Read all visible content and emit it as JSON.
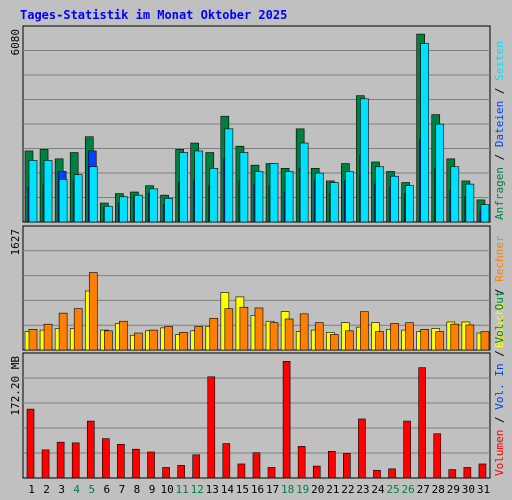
{
  "title": "Tages-Statistik im Monat Oktober 2025",
  "colors": {
    "background": "#c0c0c0",
    "title": "#0000ff",
    "anfragen": "#008040",
    "dateien": "#0040ff",
    "seiten": "#00e0ff",
    "besuche": "#ffff00",
    "rechner": "#ff8000",
    "volumen": "#ff0000",
    "vol_in": "#0040ff",
    "vol_out": "#008040",
    "weekend": "#008040"
  },
  "chart_data": [
    {
      "type": "bar",
      "name": "top",
      "ymax_label": "6080",
      "ylim": [
        0,
        6080
      ],
      "series": [
        {
          "name": "Anfragen",
          "values": [
            2250,
            2300,
            2000,
            2200,
            2700,
            600,
            900,
            950,
            1150,
            850,
            2300,
            2500,
            2200,
            3350,
            2400,
            1800,
            1850,
            1700,
            2950,
            1700,
            1300,
            1850,
            4000,
            1900,
            1600,
            1250,
            5950,
            3400,
            2000,
            1300,
            700
          ]
        },
        {
          "name": "Dateien",
          "values": [
            1100,
            1200,
            1600,
            1300,
            2250,
            450,
            600,
            800,
            900,
            550,
            1250,
            1300,
            1150,
            2000,
            1300,
            1200,
            1150,
            950,
            1700,
            1300,
            900,
            1300,
            2100,
            1200,
            1100,
            900,
            2600,
            1700,
            1000,
            800,
            400
          ]
        },
        {
          "name": "Seiten",
          "values": [
            1950,
            1950,
            1350,
            1500,
            1750,
            500,
            800,
            850,
            1050,
            750,
            2200,
            2250,
            1700,
            2950,
            2200,
            1600,
            1850,
            1600,
            2500,
            1550,
            1250,
            1600,
            3900,
            1750,
            1450,
            1150,
            5650,
            3100,
            1750,
            1200,
            550
          ]
        }
      ],
      "right_labels": [
        {
          "text": "Anfragen",
          "color": "#008040"
        },
        {
          "text": "Dateien",
          "color": "#0040ff"
        },
        {
          "text": "Seiten",
          "color": "#00e0ff"
        }
      ]
    },
    {
      "type": "bar",
      "name": "middle",
      "ymax_label": "1627",
      "ylim": [
        0,
        1627
      ],
      "series": [
        {
          "name": "Besuche",
          "values": [
            250,
            270,
            290,
            290,
            800,
            270,
            360,
            200,
            260,
            300,
            210,
            260,
            320,
            780,
            720,
            470,
            390,
            520,
            250,
            270,
            240,
            370,
            310,
            370,
            280,
            270,
            250,
            290,
            380,
            380,
            230
          ]
        },
        {
          "name": "Rechner",
          "values": [
            280,
            350,
            500,
            560,
            1050,
            260,
            390,
            230,
            270,
            320,
            240,
            320,
            430,
            560,
            580,
            570,
            370,
            420,
            490,
            370,
            210,
            260,
            520,
            250,
            360,
            370,
            280,
            250,
            350,
            340,
            250
          ]
        }
      ],
      "right_labels": [
        {
          "text": "Besuche",
          "color": "#ffff00"
        },
        {
          "text": "Rechner",
          "color": "#ff8000"
        }
      ]
    },
    {
      "type": "bar",
      "name": "bottom",
      "ymax_label": "172.20 MB",
      "ylim": [
        0,
        172.2
      ],
      "series": [
        {
          "name": "Volumen",
          "values": [
            98,
            40,
            51,
            50,
            81,
            56,
            48,
            41,
            37,
            15,
            18,
            33,
            144,
            49,
            20,
            36,
            15,
            166,
            45,
            17,
            38,
            35,
            84,
            11,
            13,
            81,
            157,
            63,
            12,
            15,
            20
          ]
        },
        {
          "name": "Vol. In",
          "values": [
            0,
            0,
            0,
            0,
            0,
            0,
            0,
            0,
            0,
            0,
            0,
            0,
            0,
            0,
            0,
            0,
            0,
            0,
            0,
            0,
            0,
            0,
            0,
            0,
            0,
            0,
            0,
            0,
            0,
            0,
            0
          ]
        },
        {
          "name": "Vol. Out",
          "values": [
            0,
            0,
            0,
            0,
            0,
            0,
            0,
            0,
            0,
            0,
            0,
            0,
            0,
            0,
            0,
            0,
            0,
            0,
            0,
            0,
            0,
            0,
            0,
            0,
            0,
            0,
            0,
            0,
            0,
            0,
            0
          ]
        }
      ],
      "right_labels": [
        {
          "text": "Volumen",
          "color": "#ff0000"
        },
        {
          "text": "Vol. In",
          "color": "#0040ff"
        },
        {
          "text": "Vol. Out",
          "color": "#008040"
        }
      ]
    }
  ],
  "days": [
    "1",
    "2",
    "3",
    "4",
    "5",
    "6",
    "7",
    "8",
    "9",
    "10",
    "11",
    "12",
    "13",
    "14",
    "15",
    "16",
    "17",
    "18",
    "19",
    "20",
    "21",
    "22",
    "23",
    "24",
    "25",
    "26",
    "27",
    "28",
    "29",
    "30",
    "31"
  ],
  "weekend_days": [
    "4",
    "5",
    "11",
    "12",
    "18",
    "19",
    "25",
    "26"
  ]
}
